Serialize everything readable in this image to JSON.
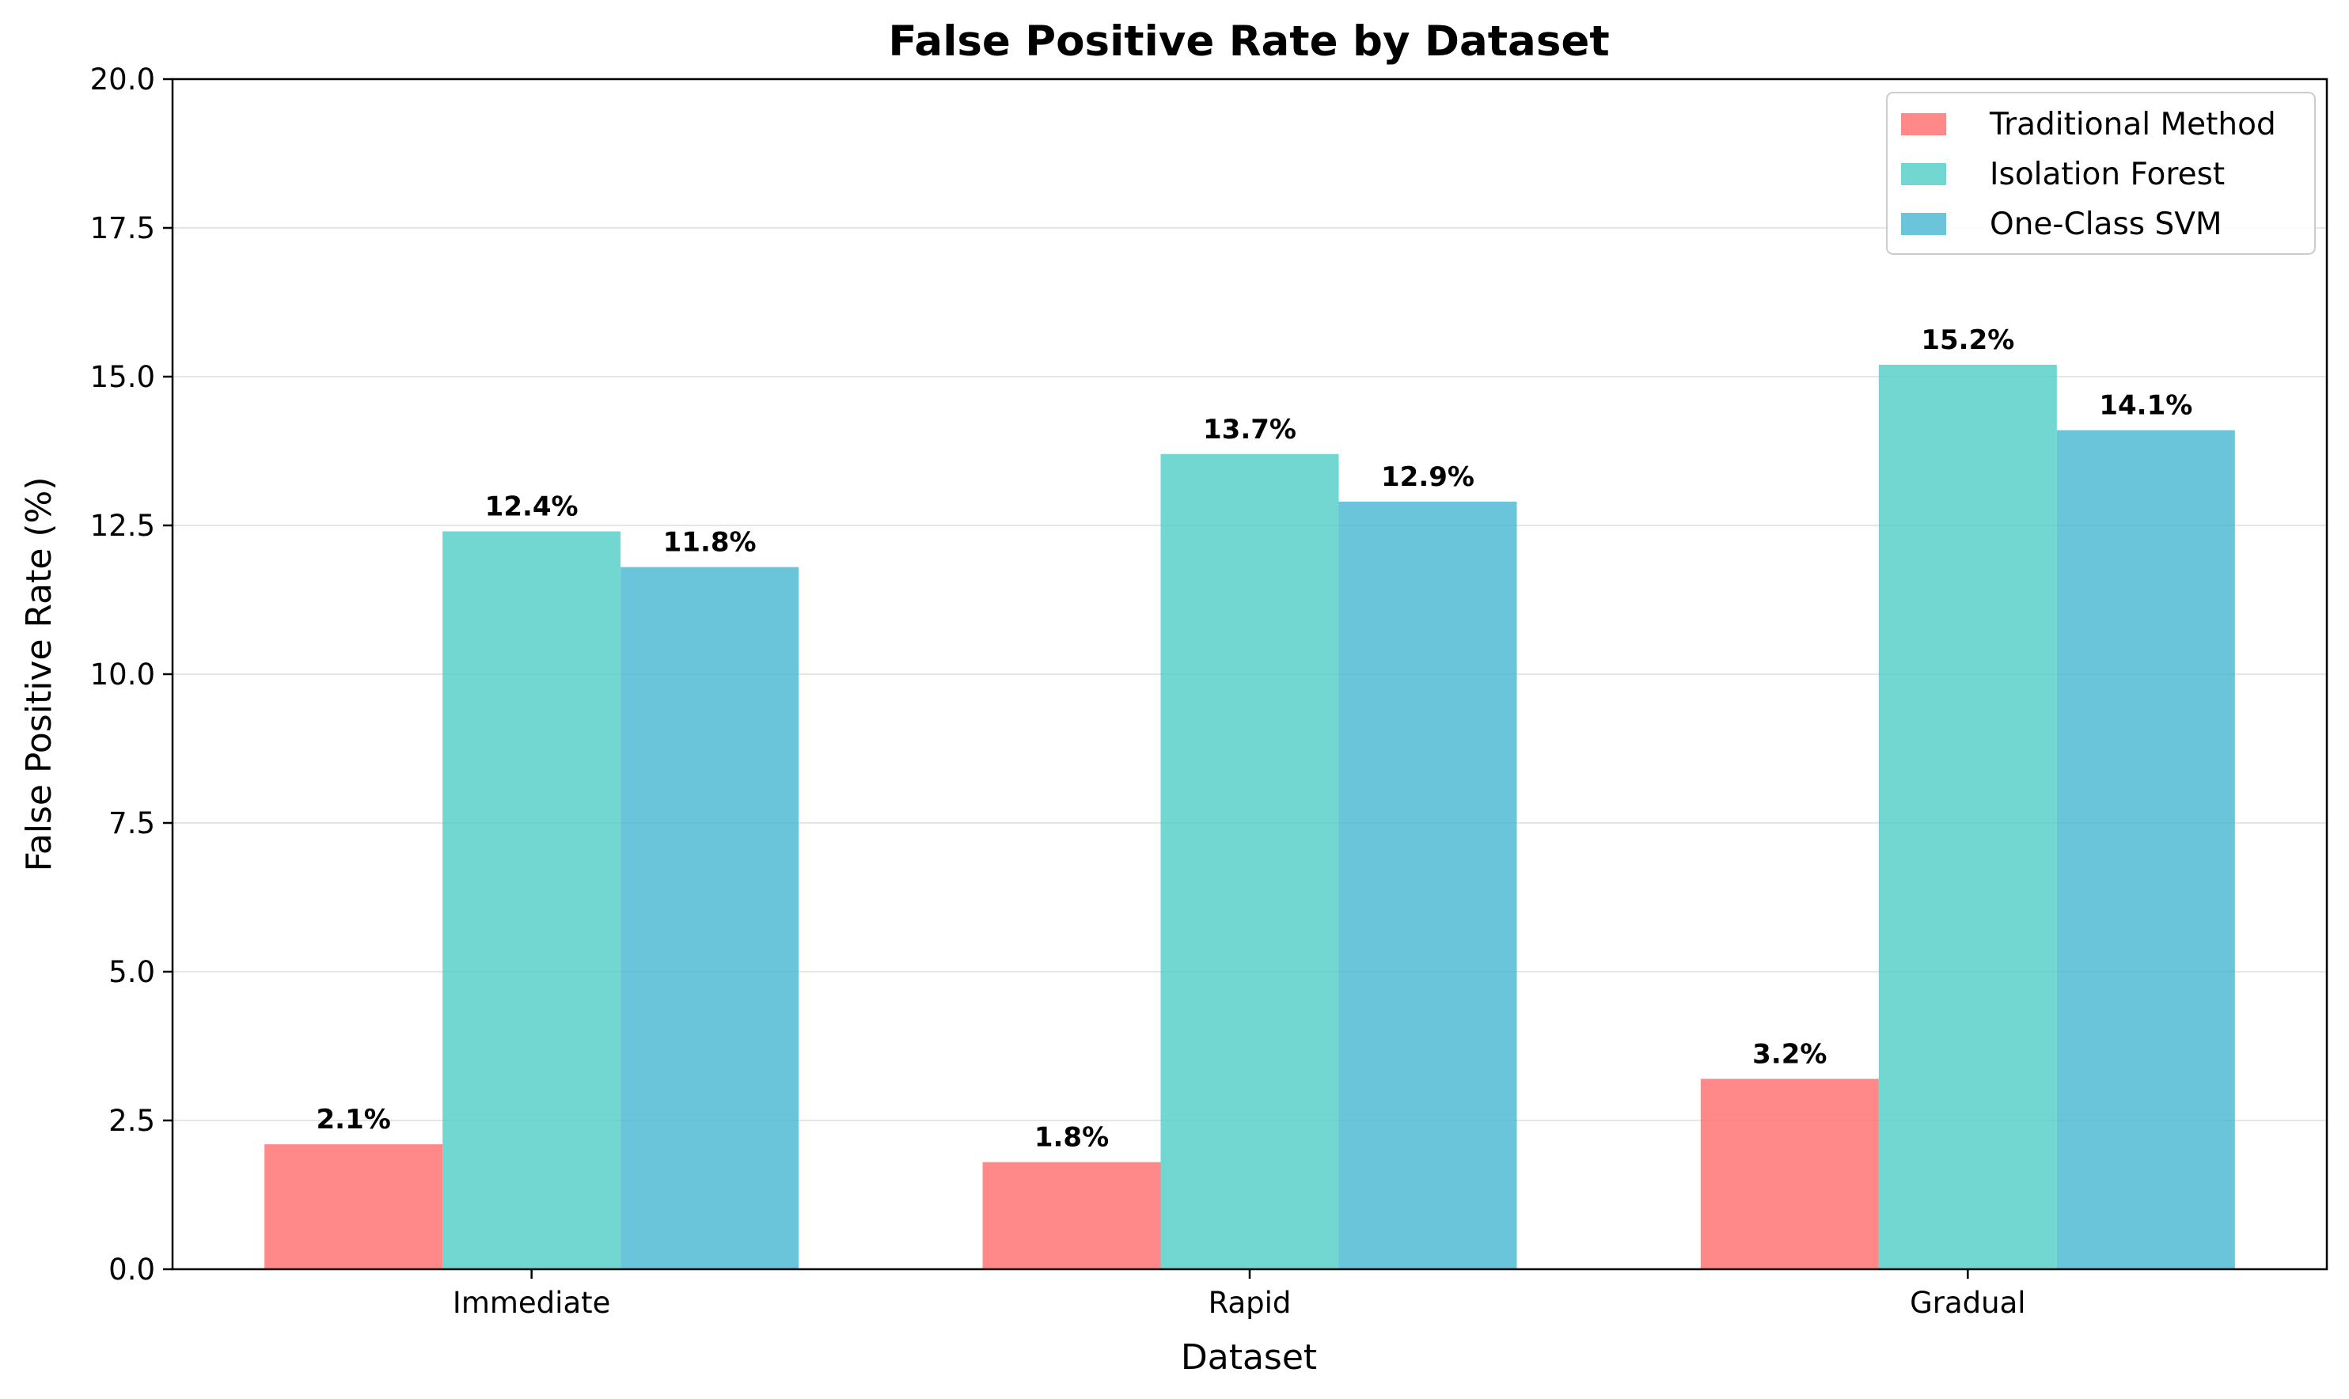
{
  "chart_data": {
    "type": "bar",
    "title": "False Positive Rate by Dataset",
    "xlabel": "Dataset",
    "ylabel": "False Positive Rate (%)",
    "categories": [
      "Immediate",
      "Rapid",
      "Gradual"
    ],
    "ylim": [
      0,
      20
    ],
    "yticks": [
      "0.0",
      "2.5",
      "5.0",
      "7.5",
      "10.0",
      "12.5",
      "15.0",
      "17.5",
      "20.0"
    ],
    "grid": "horizontal",
    "legend_position": "top-right",
    "series": [
      {
        "name": "Traditional Method",
        "color": "#ff6b6b",
        "values": [
          2.1,
          1.8,
          3.2
        ],
        "labels": [
          "2.1%",
          "1.8%",
          "3.2%"
        ]
      },
      {
        "name": "Isolation Forest",
        "color": "#4ecdc4",
        "values": [
          12.4,
          13.7,
          15.2
        ],
        "labels": [
          "12.4%",
          "13.7%",
          "15.2%"
        ]
      },
      {
        "name": "One-Class SVM",
        "color": "#45b7d1",
        "values": [
          11.8,
          12.9,
          14.1
        ],
        "labels": [
          "11.8%",
          "12.9%",
          "14.1%"
        ]
      }
    ]
  }
}
